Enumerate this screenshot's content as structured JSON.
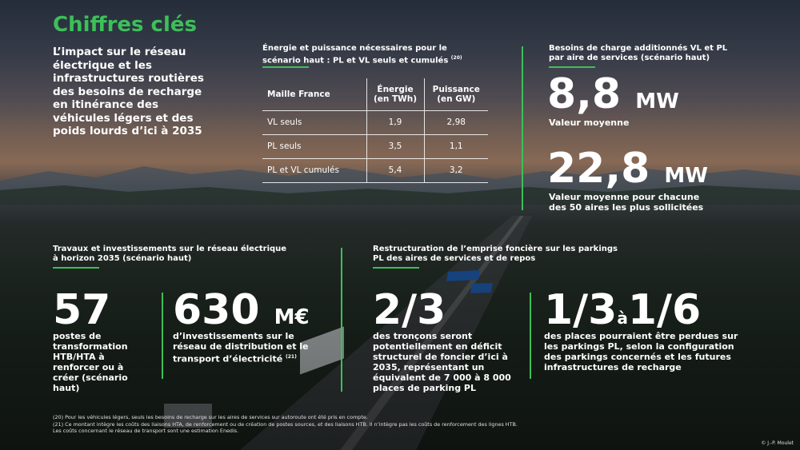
{
  "title": "Chiffres clés",
  "intro": "L’impact sur le réseau électrique et les infrastructures routières des besoins de recharge en itinérance des véhicules légers et des poids lourds d’ici à 2035",
  "energy_table": {
    "title": "Énergie et puissance nécessaires pour le scénario haut : PL et VL seuls et cumulés",
    "ref": "(20)",
    "headers": [
      "Maille France",
      "Énergie (en TWh)",
      "Puissance (en GW)"
    ],
    "rows": [
      [
        "VL seuls",
        "1,9",
        "2,98"
      ],
      [
        "PL seuls",
        "3,5",
        "1,1"
      ],
      [
        "PL et VL cumulés",
        "5,4",
        "3,2"
      ]
    ]
  },
  "charge_needs": {
    "title": "Besoins de charge additionnés VL et PL par aire de services (scénario haut)",
    "stat1_value": "8,8",
    "stat1_unit": "MW",
    "stat1_label": "Valeur moyenne",
    "stat2_value": "22,8",
    "stat2_unit": "MW",
    "stat2_label": "Valeur moyenne pour chacune des 50 aires les plus sollicitées"
  },
  "works": {
    "title": "Travaux et investissements sur le réseau électrique à horizon 2035 (scénario haut)",
    "stat1_value": "57",
    "stat1_label": "postes de transformation HTB/HTA à renforcer ou à créer (scénario haut)",
    "stat2_value": "630",
    "stat2_unit": "M€",
    "stat2_label": "d’investissements sur le réseau de distribution et le transport d’électricité",
    "stat2_ref": "(21)"
  },
  "parking": {
    "title": "Restructuration de l’emprise foncière sur les parkings PL des aires de services et de repos",
    "stat1_value": "2/3",
    "stat1_label": "des tronçons seront potentiellement en déficit structurel de foncier d’ici à 2035, représentant un équivalent de 7 000 à 8 000 places de parking PL",
    "stat2_value_a": "1/3",
    "stat2_connector": "à",
    "stat2_value_b": "1/6",
    "stat2_label": "des places pourraient être perdues sur les parkings PL, selon la configuration des parkings concernés et les futures infrastructures de recharge"
  },
  "footnotes": [
    "(20) Pour les véhicules légers, seuls les besoins de recharge sur les aires de services sur autoroute ont été pris en compte.",
    "(21) Ce montant intègre les coûts des liaisons HTA, de renforcement ou de création de postes sources, et des liaisons HTB. Il n’intègre pas les coûts de renforcement des lignes HTB. Les coûts concernant le réseau de transport sont une estimation Enedis."
  ],
  "credit": "© J.-P. Moulet",
  "colors": {
    "accent": "#3dbf5a",
    "text": "#ffffff"
  }
}
